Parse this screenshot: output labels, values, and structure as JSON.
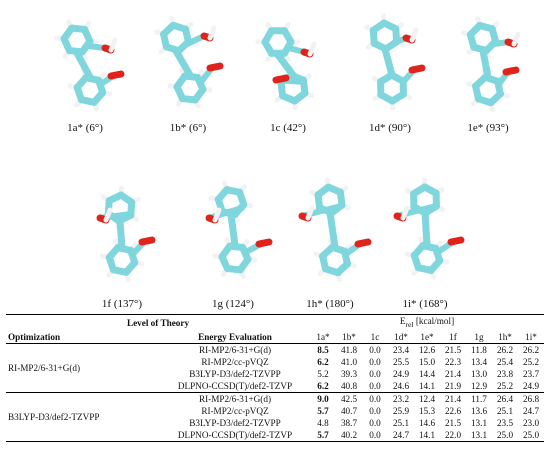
{
  "molecules_row1": [
    {
      "label": "1a* (6°)"
    },
    {
      "label": "1b* (6°)"
    },
    {
      "label": "1c (42°)"
    },
    {
      "label": "1d* (90°)"
    },
    {
      "label": "1e* (93°)"
    }
  ],
  "molecules_row2": [
    {
      "label": "1f (137°)"
    },
    {
      "label": "1g (124°)"
    },
    {
      "label": "1h* (180°)"
    },
    {
      "label": "1i* (168°)"
    }
  ],
  "colors": {
    "carbon": "#7fd6dc",
    "hydrogen": "#f2f2f2",
    "oxygen": "#e0241b"
  },
  "table": {
    "header_level": "Level of Theory",
    "header_energy": "E",
    "header_energy_sub": "rel",
    "header_energy_unit": " [kcal/mol]",
    "col_optimization": "Optimization",
    "col_energy_eval": "Energy Evaluation",
    "conformers": [
      "1a*",
      "1b*",
      "1c",
      "1d*",
      "1e*",
      "1f",
      "1g",
      "1h*",
      "1i*"
    ],
    "groups": [
      {
        "optimization": "RI-MP2/6-31+G(d)",
        "rows": [
          {
            "eval": "RI-MP2/6-31+G(d)",
            "values": [
              "8.5",
              "41.8",
              "0.0",
              "23.4",
              "12.6",
              "21.5",
              "11.8",
              "26.2",
              "26.2"
            ],
            "bold_first": true
          },
          {
            "eval": "RI-MP2/cc-pVQZ",
            "values": [
              "6.2",
              "41.0",
              "0.0",
              "25.5",
              "15.0",
              "22.3",
              "13.4",
              "25.4",
              "25.2"
            ],
            "bold_first": true
          },
          {
            "eval": "B3LYP-D3/def2-TZVPP",
            "values": [
              "5.2",
              "39.3",
              "0.0",
              "24.9",
              "14.4",
              "21.4",
              "13.0",
              "23.8",
              "23.7"
            ],
            "bold_first": false
          },
          {
            "eval": "DLPNO-CCSD(T)/def2-TZVP",
            "values": [
              "6.2",
              "40.8",
              "0.0",
              "24.6",
              "14.1",
              "21.9",
              "12.9",
              "25.2",
              "24.9"
            ],
            "bold_first": true
          }
        ]
      },
      {
        "optimization": "B3LYP-D3/def2-TZVPP",
        "rows": [
          {
            "eval": "RI-MP2/6-31+G(d)",
            "values": [
              "9.0",
              "42.5",
              "0.0",
              "23.2",
              "12.4",
              "21.4",
              "11.7",
              "26.4",
              "26.8"
            ],
            "bold_first": true
          },
          {
            "eval": "RI-MP2/cc-pVQZ",
            "values": [
              "5.7",
              "40.7",
              "0.0",
              "25.9",
              "15.3",
              "22.6",
              "13.6",
              "25.1",
              "24.7"
            ],
            "bold_first": true
          },
          {
            "eval": "B3LYP-D3/def2-TZVPP",
            "values": [
              "4.8",
              "38.7",
              "0.0",
              "25.1",
              "14.6",
              "21.5",
              "13.1",
              "23.5",
              "23.0"
            ],
            "bold_first": false
          },
          {
            "eval": "DLPNO-CCSD(T)/def2-TZVP",
            "values": [
              "5.7",
              "40.2",
              "0.0",
              "24.7",
              "14.1",
              "22.0",
              "13.1",
              "25.0",
              "25.0"
            ],
            "bold_first": true
          }
        ]
      }
    ]
  }
}
